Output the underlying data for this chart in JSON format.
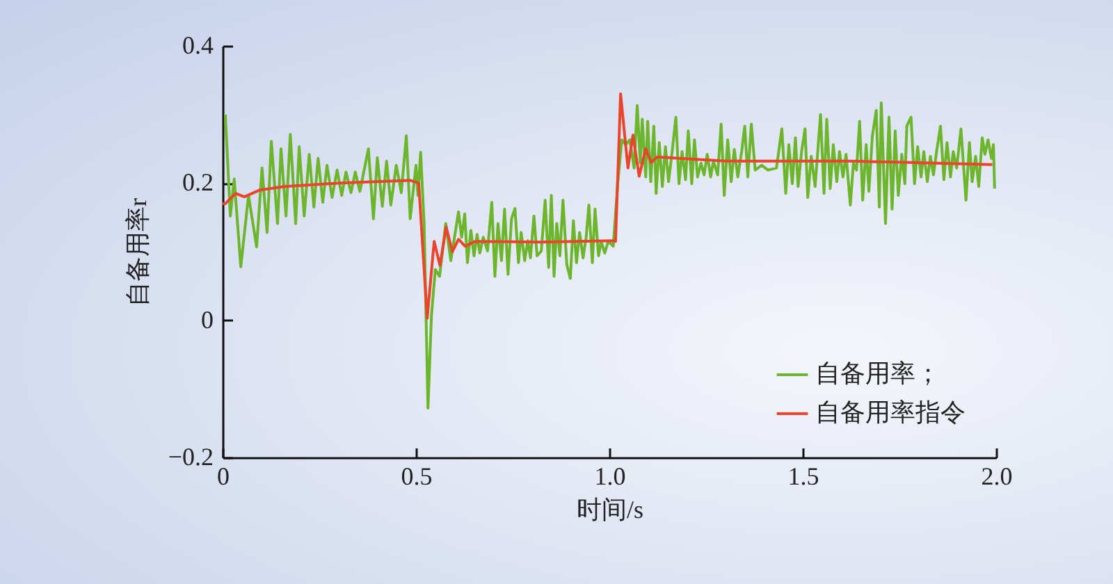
{
  "chart_data": {
    "type": "line",
    "xlabel": "时间/s",
    "ylabel": "自备用率r",
    "xlim": [
      0,
      2
    ],
    "xticks": [
      0,
      {
        "value": 0.5,
        "label": "0.5"
      },
      {
        "value": 1,
        "label": "1.0"
      },
      {
        "value": 1.5,
        "label": "1.5"
      },
      {
        "value": 2,
        "label": "2.0"
      }
    ],
    "ylim": [
      -0.2,
      0.4
    ],
    "yticks": [
      {
        "value": -0.2,
        "label": "−0.2"
      },
      0,
      0.2,
      0.4
    ],
    "grid": false,
    "legend": "bottom right",
    "line_style": "solid",
    "series": [
      {
        "name": "自备用率；",
        "color": "#6cb52d",
        "x": [
          0.007,
          0.02,
          0.03,
          0.047,
          0.067,
          0.088,
          0.102,
          0.115,
          0.126,
          0.142,
          0.151,
          0.164,
          0.175,
          0.189,
          0.198,
          0.211,
          0.224,
          0.236,
          0.247,
          0.259,
          0.27,
          0.283,
          0.296,
          0.308,
          0.319,
          0.332,
          0.343,
          0.355,
          0.377,
          0.39,
          0.4,
          0.413,
          0.424,
          0.435,
          0.449,
          0.462,
          0.475,
          0.485,
          0.5,
          0.505,
          0.512,
          0.521,
          0.531,
          0.54,
          0.55,
          0.561,
          0.577,
          0.59,
          0.61,
          0.618,
          0.626,
          0.633,
          0.642,
          0.65,
          0.658,
          0.665,
          0.674,
          0.685,
          0.696,
          0.704,
          0.712,
          0.721,
          0.729,
          0.738,
          0.747,
          0.756,
          0.765,
          0.772,
          0.781,
          0.789,
          0.796,
          0.805,
          0.813,
          0.824,
          0.834,
          0.843,
          0.85,
          0.857,
          0.864,
          0.872,
          0.88,
          0.89,
          0.899,
          0.907,
          0.915,
          0.923,
          0.932,
          0.94,
          0.947,
          0.956,
          0.963,
          0.972,
          0.979,
          0.988,
          0.997,
          1.01,
          1.021,
          1.032,
          1.042,
          1.053,
          1.064,
          1.072,
          1.08,
          1.085,
          1.094,
          1.099,
          1.107,
          1.115,
          1.121,
          1.129,
          1.137,
          1.145,
          1.153,
          1.161,
          1.172,
          1.18,
          1.188,
          1.197,
          1.204,
          1.213,
          1.22,
          1.228,
          1.237,
          1.245,
          1.253,
          1.262,
          1.269,
          1.28,
          1.289,
          1.297,
          1.306,
          1.315,
          1.323,
          1.332,
          1.342,
          1.35,
          1.358,
          1.367,
          1.377,
          1.394,
          1.41,
          1.432,
          1.446,
          1.456,
          1.464,
          1.473,
          1.481,
          1.488,
          1.497,
          1.506,
          1.513,
          1.522,
          1.532,
          1.541,
          1.546,
          1.555,
          1.562,
          1.571,
          1.579,
          1.588,
          1.595,
          1.604,
          1.612,
          1.623,
          1.631,
          1.639,
          1.647,
          1.655,
          1.664,
          1.671,
          1.68,
          1.69,
          1.698,
          1.703,
          1.714,
          1.723,
          1.731,
          1.739,
          1.747,
          1.756,
          1.764,
          1.769,
          1.78,
          1.789,
          1.797,
          1.806,
          1.813,
          1.822,
          1.83,
          1.838,
          1.846,
          1.856,
          1.865,
          1.873,
          1.882,
          1.889,
          1.898,
          1.909,
          1.922,
          1.931,
          1.938,
          1.947,
          1.955,
          1.964,
          1.971,
          1.979,
          1.988,
          1.993,
          1.996
        ],
        "values": [
          0.3,
          0.152,
          0.206,
          0.078,
          0.182,
          0.107,
          0.222,
          0.128,
          0.261,
          0.141,
          0.25,
          0.152,
          0.271,
          0.141,
          0.253,
          0.152,
          0.242,
          0.165,
          0.236,
          0.172,
          0.226,
          0.179,
          0.219,
          0.182,
          0.216,
          0.186,
          0.216,
          0.188,
          0.25,
          0.148,
          0.237,
          0.166,
          0.232,
          0.168,
          0.226,
          0.186,
          0.269,
          0.148,
          0.226,
          0.182,
          0.245,
          0.141,
          -0.128,
          0.007,
          0.074,
          0.064,
          0.141,
          0.087,
          0.158,
          0.121,
          0.155,
          0.084,
          0.131,
          0.094,
          0.125,
          0.098,
          0.121,
          0.101,
          0.172,
          0.064,
          0.141,
          0.087,
          0.162,
          0.067,
          0.148,
          0.163,
          0.084,
          0.128,
          0.087,
          0.116,
          0.091,
          0.152,
          0.094,
          0.101,
          0.175,
          0.077,
          0.182,
          0.064,
          0.141,
          0.094,
          0.175,
          0.081,
          0.061,
          0.145,
          0.084,
          0.128,
          0.091,
          0.121,
          0.168,
          0.084,
          0.162,
          0.094,
          0.115,
          0.098,
          0.115,
          0.108,
          0.195,
          0.263,
          0.256,
          0.263,
          0.222,
          0.313,
          0.229,
          0.293,
          0.209,
          0.29,
          0.202,
          0.283,
          0.185,
          0.259,
          0.195,
          0.253,
          0.202,
          0.239,
          0.296,
          0.199,
          0.246,
          0.205,
          0.276,
          0.199,
          0.263,
          0.209,
          0.229,
          0.212,
          0.242,
          0.209,
          0.232,
          0.212,
          0.286,
          0.182,
          0.263,
          0.202,
          0.249,
          0.209,
          0.246,
          0.283,
          0.209,
          0.286,
          0.219,
          0.226,
          0.219,
          0.222,
          0.279,
          0.185,
          0.256,
          0.199,
          0.266,
          0.195,
          0.246,
          0.279,
          0.179,
          0.239,
          0.195,
          0.263,
          0.3,
          0.185,
          0.293,
          0.192,
          0.256,
          0.202,
          0.246,
          0.209,
          0.242,
          0.168,
          0.229,
          0.219,
          0.29,
          0.175,
          0.256,
          0.188,
          0.269,
          0.306,
          0.165,
          0.317,
          0.141,
          0.296,
          0.162,
          0.276,
          0.182,
          0.242,
          0.199,
          0.283,
          0.296,
          0.199,
          0.253,
          0.209,
          0.246,
          0.202,
          0.239,
          0.212,
          0.246,
          0.283,
          0.205,
          0.259,
          0.209,
          0.246,
          0.222,
          0.279,
          0.175,
          0.259,
          0.202,
          0.239,
          0.195,
          0.266,
          0.242,
          0.263,
          0.236,
          0.256,
          0.192
        ]
      },
      {
        "name": "自备用率指令",
        "color": "#e8452c",
        "x": [
          0,
          0.007,
          0.034,
          0.056,
          0.097,
          0.16,
          0.305,
          0.485,
          0.507,
          0.529,
          0.547,
          0.562,
          0.578,
          0.594,
          0.61,
          0.627,
          0.653,
          0.816,
          1.01,
          1.016,
          1.029,
          1.048,
          1.061,
          1.077,
          1.094,
          1.108,
          1.124,
          1.302,
          1.627,
          1.99
        ],
        "values": [
          0.17,
          0.17,
          0.185,
          0.18,
          0.19,
          0.195,
          0.2,
          0.204,
          0.2,
          0.003,
          0.115,
          0.08,
          0.136,
          0.1,
          0.118,
          0.108,
          0.115,
          0.114,
          0.116,
          0.115,
          0.33,
          0.222,
          0.27,
          0.21,
          0.25,
          0.23,
          0.238,
          0.232,
          0.232,
          0.227
        ]
      }
    ]
  }
}
